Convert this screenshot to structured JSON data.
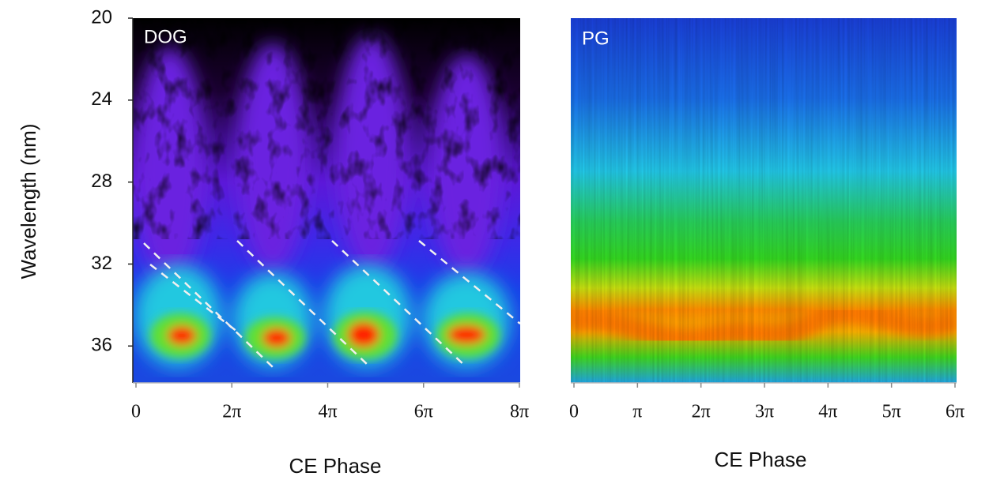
{
  "chart_data": [
    {
      "type": "heatmap",
      "title": "DOG",
      "x_label": "CE Phase",
      "y_label": "Wavelength (nm)",
      "xlim": [
        0,
        8
      ],
      "xticks": [
        0,
        {
          "value": 2,
          "label": "2π"
        },
        {
          "value": 4,
          "label": "4π"
        },
        {
          "value": 6,
          "label": "6π"
        },
        {
          "value": 8,
          "label": "8π"
        }
      ],
      "ylim": [
        20,
        37.8
      ],
      "yticks": [
        20,
        24,
        28,
        32,
        36
      ]
    },
    {
      "type": "heatmap",
      "title": "PG",
      "x_label": "CE Phase",
      "xlim": [
        0,
        6
      ],
      "xticks": [
        0,
        {
          "value": 1,
          "label": "π"
        },
        {
          "value": 2,
          "label": "2π"
        },
        {
          "value": 3,
          "label": "3π"
        },
        {
          "value": 4,
          "label": "4π"
        },
        {
          "value": 5,
          "label": "5π"
        },
        {
          "value": 6,
          "label": "6π"
        }
      ],
      "ylim": [
        20,
        37.8
      ]
    }
  ]
}
